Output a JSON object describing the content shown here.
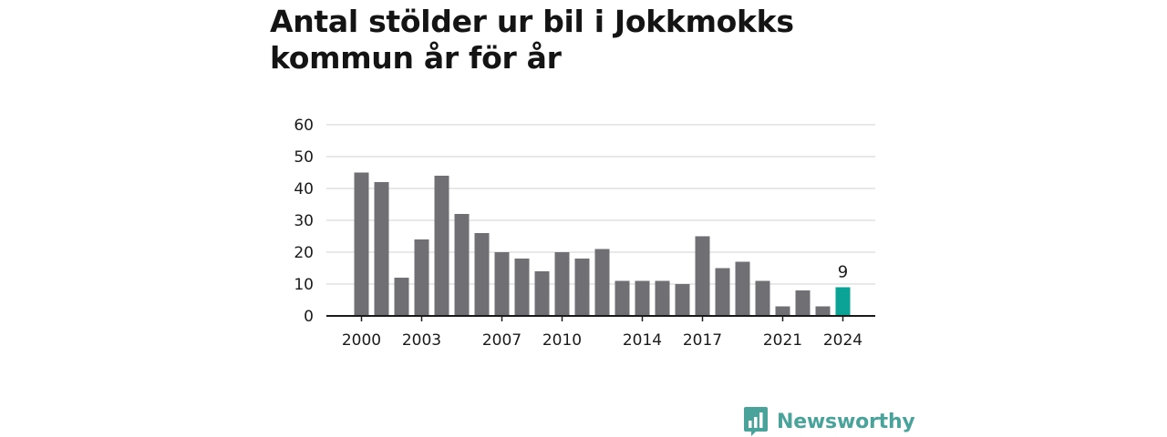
{
  "title": "Antal stölder ur bil i Jokkmokks kommun år för år",
  "brand": {
    "name": "Newsworthy",
    "icon": "newsworthy-logo-icon",
    "color": "#4aa39b"
  },
  "colors": {
    "bar": "#707074",
    "highlight": "#0aa396",
    "grid": "#d9d9d9",
    "axis": "#1a1a1a"
  },
  "chart_data": {
    "type": "bar",
    "x": [
      2000,
      2001,
      2002,
      2003,
      2004,
      2005,
      2006,
      2007,
      2008,
      2009,
      2010,
      2011,
      2012,
      2013,
      2014,
      2015,
      2016,
      2017,
      2018,
      2019,
      2020,
      2021,
      2022,
      2023,
      2024
    ],
    "values": [
      45,
      42,
      12,
      24,
      44,
      32,
      26,
      20,
      18,
      14,
      20,
      18,
      21,
      11,
      11,
      11,
      10,
      25,
      15,
      17,
      11,
      3,
      8,
      3,
      9
    ],
    "highlight_index": 24,
    "highlight_label": "9",
    "xtick_labels": [
      "2000",
      "2003",
      "2007",
      "2010",
      "2014",
      "2017",
      "2021",
      "2024"
    ],
    "ytick_labels": [
      "0",
      "10",
      "20",
      "30",
      "40",
      "50",
      "60"
    ],
    "ylim": [
      0,
      60
    ],
    "grid": true,
    "xlabel": "",
    "ylabel": ""
  }
}
